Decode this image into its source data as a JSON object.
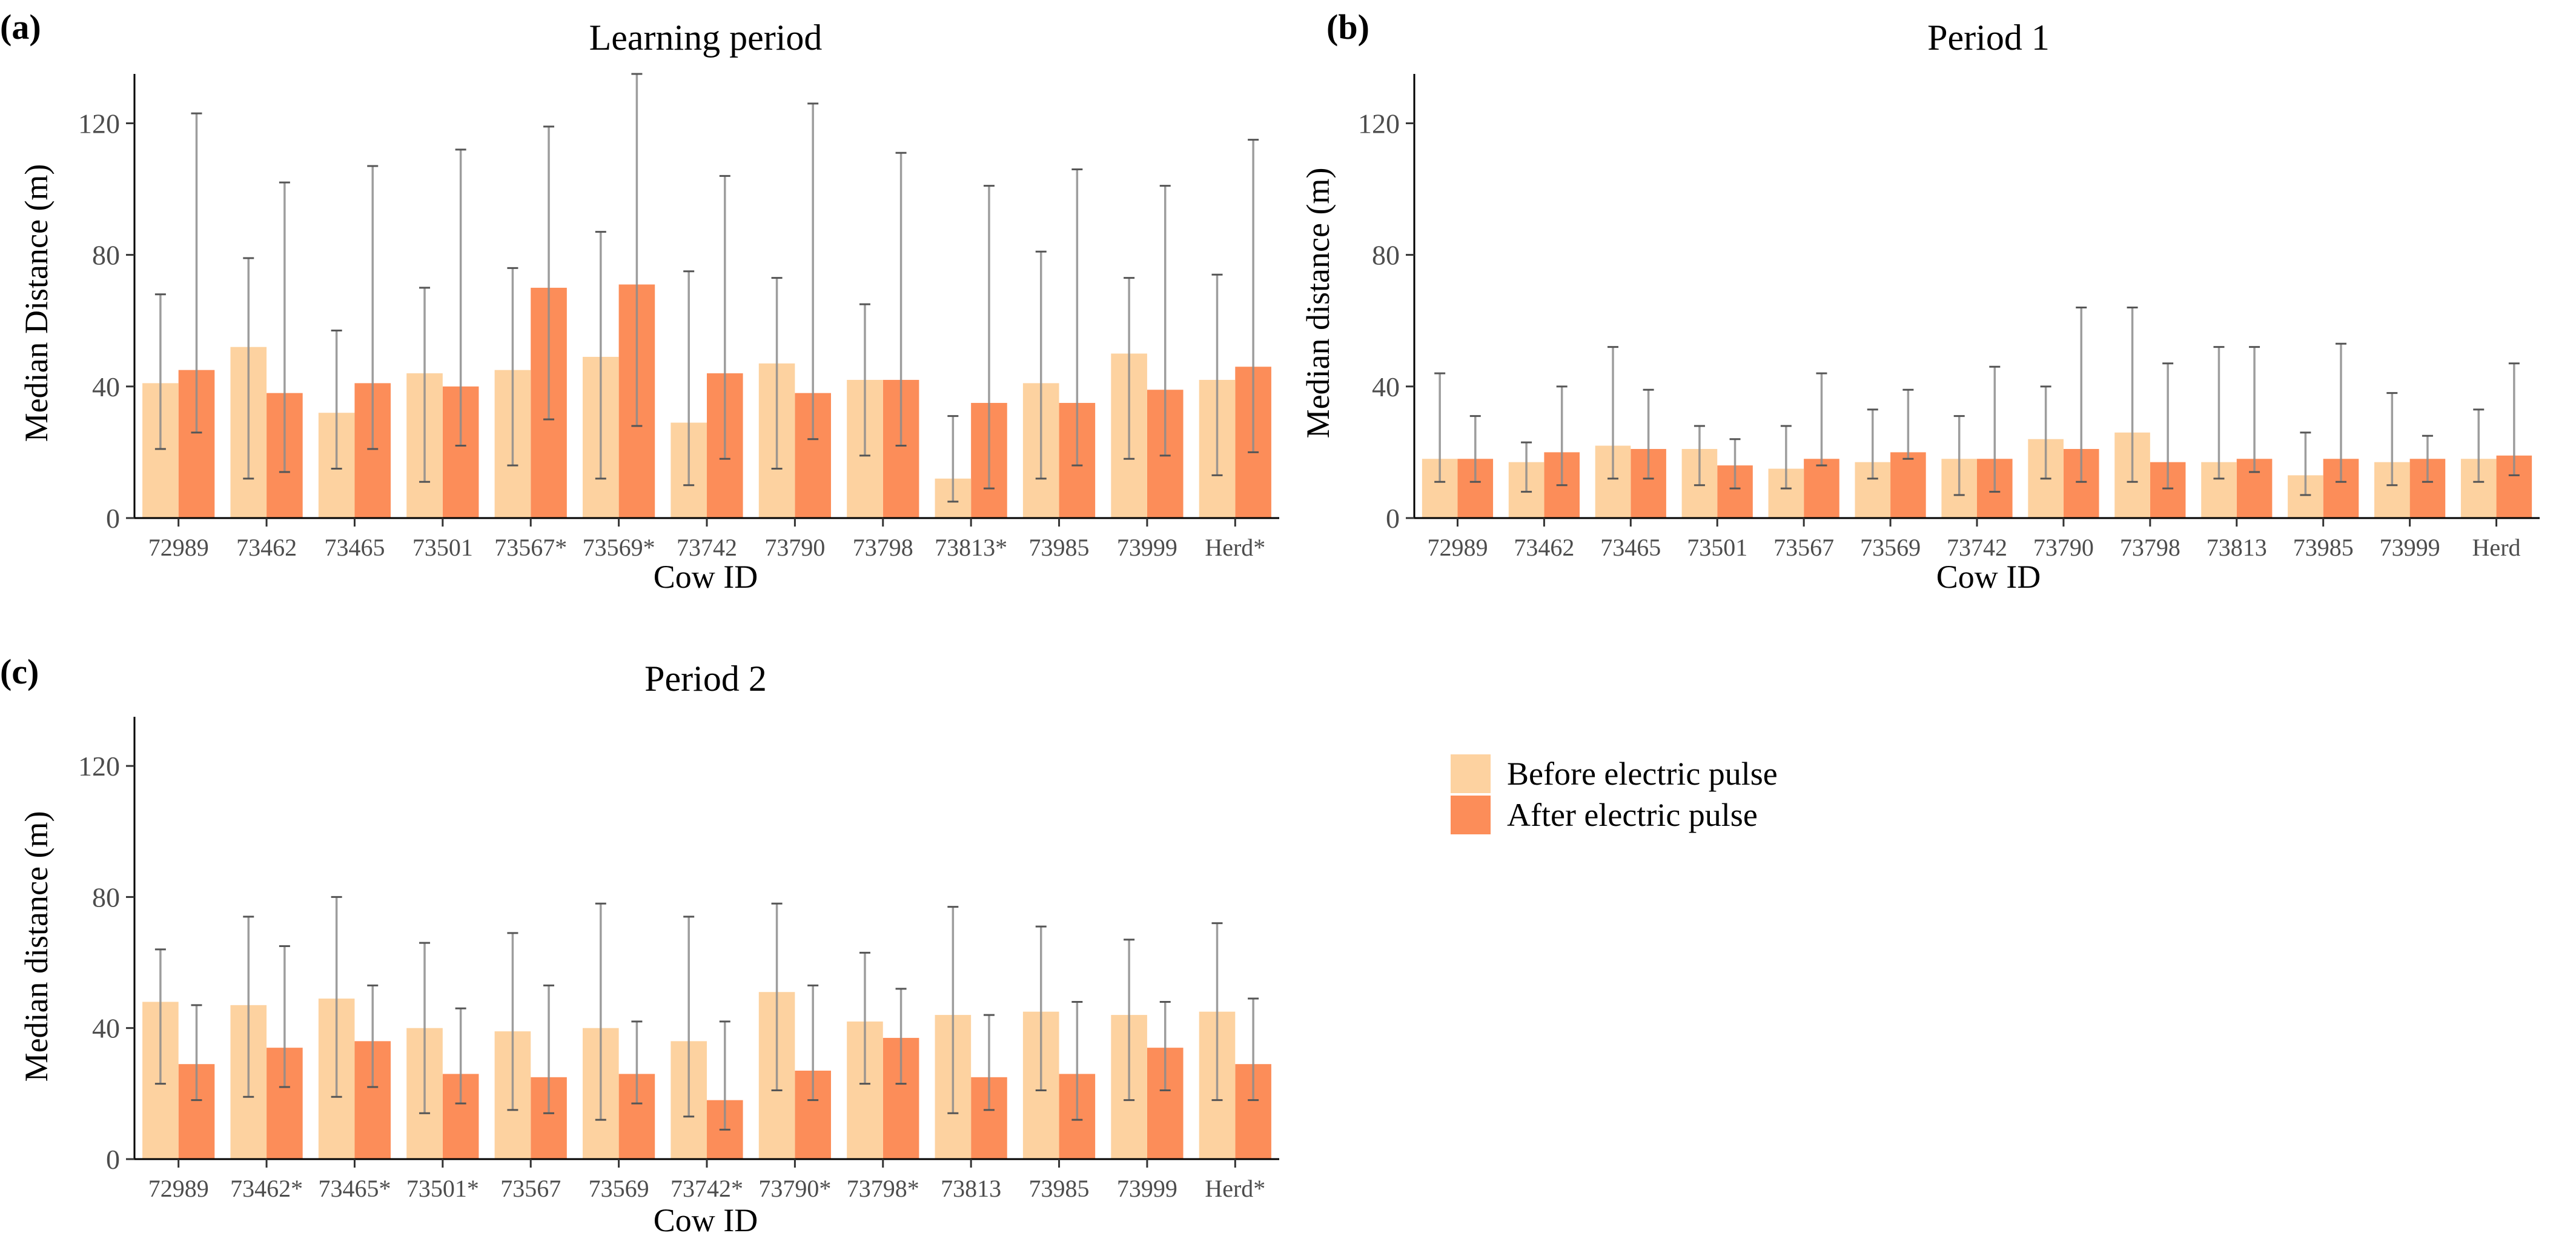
{
  "legend": {
    "items": [
      {
        "label": "Before electric pulse",
        "color": "#FDD2A0"
      },
      {
        "label": "After electric pulse",
        "color": "#FC8D59"
      }
    ]
  },
  "colors": {
    "before": "#FDD2A0",
    "after": "#FC8D59",
    "error_bar": "#8c8c8c"
  },
  "chart_data": [
    {
      "type": "bar",
      "panel_tag": "(a)",
      "title": "Learning period",
      "xlabel": "Cow ID",
      "ylabel": "Median Distance (m)",
      "ylim": [
        0,
        135
      ],
      "yticks": [
        0,
        40,
        80,
        120
      ],
      "categories": [
        "72989",
        "73462",
        "73465",
        "73501",
        "73567*",
        "73569*",
        "73742",
        "73790",
        "73798",
        "73813*",
        "73985",
        "73999",
        "Herd*"
      ],
      "series": [
        {
          "name": "Before electric pulse",
          "values": [
            41,
            52,
            32,
            44,
            45,
            49,
            29,
            47,
            42,
            12,
            41,
            50,
            42
          ],
          "err_low": [
            21,
            12,
            15,
            11,
            16,
            12,
            10,
            15,
            19,
            5,
            12,
            18,
            13
          ],
          "err_high": [
            68,
            79,
            57,
            70,
            76,
            87,
            75,
            73,
            65,
            31,
            81,
            73,
            74
          ]
        },
        {
          "name": "After electric pulse",
          "values": [
            45,
            38,
            41,
            40,
            70,
            71,
            44,
            38,
            42,
            35,
            35,
            39,
            46
          ],
          "err_low": [
            26,
            14,
            21,
            22,
            30,
            28,
            18,
            24,
            22,
            9,
            16,
            19,
            20
          ],
          "err_high": [
            123,
            102,
            107,
            112,
            119,
            135,
            104,
            126,
            111,
            101,
            106,
            101,
            115
          ]
        }
      ]
    },
    {
      "type": "bar",
      "panel_tag": "(b)",
      "title": "Period 1",
      "xlabel": "Cow ID",
      "ylabel": "Median distance (m)",
      "ylim": [
        0,
        135
      ],
      "yticks": [
        0,
        40,
        80,
        120
      ],
      "categories": [
        "72989",
        "73462",
        "73465",
        "73501",
        "73567",
        "73569",
        "73742",
        "73790",
        "73798",
        "73813",
        "73985",
        "73999",
        "Herd"
      ],
      "series": [
        {
          "name": "Before electric pulse",
          "values": [
            18,
            17,
            22,
            21,
            15,
            17,
            18,
            24,
            26,
            17,
            13,
            17,
            18
          ],
          "err_low": [
            11,
            8,
            12,
            10,
            9,
            12,
            7,
            12,
            11,
            12,
            7,
            10,
            11
          ],
          "err_high": [
            44,
            23,
            52,
            28,
            28,
            33,
            31,
            40,
            64,
            52,
            26,
            38,
            33
          ]
        },
        {
          "name": "After electric pulse",
          "values": [
            18,
            20,
            21,
            16,
            18,
            20,
            18,
            21,
            17,
            18,
            18,
            18,
            19
          ],
          "err_low": [
            11,
            10,
            12,
            9,
            16,
            18,
            8,
            11,
            9,
            14,
            11,
            11,
            13
          ],
          "err_high": [
            31,
            40,
            39,
            24,
            44,
            39,
            46,
            64,
            47,
            52,
            53,
            25,
            47
          ]
        }
      ]
    },
    {
      "type": "bar",
      "panel_tag": "(c)",
      "title": "Period 2",
      "xlabel": "Cow ID",
      "ylabel": "Median distance (m)",
      "ylim": [
        0,
        135
      ],
      "yticks": [
        0,
        40,
        80,
        120
      ],
      "categories": [
        "72989",
        "73462*",
        "73465*",
        "73501*",
        "73567",
        "73569",
        "73742*",
        "73790*",
        "73798*",
        "73813",
        "73985",
        "73999",
        "Herd*"
      ],
      "series": [
        {
          "name": "Before electric pulse",
          "values": [
            48,
            47,
            49,
            40,
            39,
            40,
            36,
            51,
            42,
            44,
            45,
            44,
            45
          ],
          "err_low": [
            23,
            19,
            19,
            14,
            15,
            12,
            13,
            21,
            23,
            14,
            21,
            18,
            18
          ],
          "err_high": [
            64,
            74,
            80,
            66,
            69,
            78,
            74,
            78,
            63,
            77,
            71,
            67,
            72
          ]
        },
        {
          "name": "After electric pulse",
          "values": [
            29,
            34,
            36,
            26,
            25,
            26,
            18,
            27,
            37,
            25,
            26,
            34,
            29
          ],
          "err_low": [
            18,
            22,
            22,
            17,
            14,
            17,
            9,
            18,
            23,
            15,
            12,
            21,
            18
          ],
          "err_high": [
            47,
            65,
            53,
            46,
            53,
            42,
            42,
            53,
            52,
            44,
            48,
            48,
            49
          ]
        }
      ]
    }
  ]
}
